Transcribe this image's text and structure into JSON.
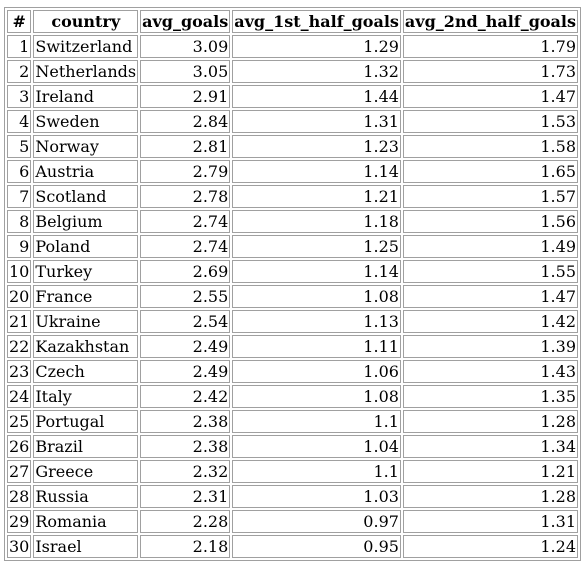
{
  "table": {
    "columns": [
      "#",
      "country",
      "avg_goals",
      "avg_1st_half_goals",
      "avg_2nd_half_goals"
    ],
    "rows": [
      [
        "1",
        "Switzerland",
        "3.09",
        "1.29",
        "1.79"
      ],
      [
        "2",
        "Netherlands",
        "3.05",
        "1.32",
        "1.73"
      ],
      [
        "3",
        "Ireland",
        "2.91",
        "1.44",
        "1.47"
      ],
      [
        "4",
        "Sweden",
        "2.84",
        "1.31",
        "1.53"
      ],
      [
        "5",
        "Norway",
        "2.81",
        "1.23",
        "1.58"
      ],
      [
        "6",
        "Austria",
        "2.79",
        "1.14",
        "1.65"
      ],
      [
        "7",
        "Scotland",
        "2.78",
        "1.21",
        "1.57"
      ],
      [
        "8",
        "Belgium",
        "2.74",
        "1.18",
        "1.56"
      ],
      [
        "9",
        "Poland",
        "2.74",
        "1.25",
        "1.49"
      ],
      [
        "10",
        "Turkey",
        "2.69",
        "1.14",
        "1.55"
      ],
      [
        "20",
        "France",
        "2.55",
        "1.08",
        "1.47"
      ],
      [
        "21",
        "Ukraine",
        "2.54",
        "1.13",
        "1.42"
      ],
      [
        "22",
        "Kazakhstan",
        "2.49",
        "1.11",
        "1.39"
      ],
      [
        "23",
        "Czech",
        "2.49",
        "1.06",
        "1.43"
      ],
      [
        "24",
        "Italy",
        "2.42",
        "1.08",
        "1.35"
      ],
      [
        "25",
        "Portugal",
        "2.38",
        "1.1",
        "1.28"
      ],
      [
        "26",
        "Brazil",
        "2.38",
        "1.04",
        "1.34"
      ],
      [
        "27",
        "Greece",
        "2.32",
        "1.1",
        "1.21"
      ],
      [
        "28",
        "Russia",
        "2.31",
        "1.03",
        "1.28"
      ],
      [
        "29",
        "Romania",
        "2.28",
        "0.97",
        "1.31"
      ],
      [
        "30",
        "Israel",
        "2.18",
        "0.95",
        "1.24"
      ]
    ]
  }
}
